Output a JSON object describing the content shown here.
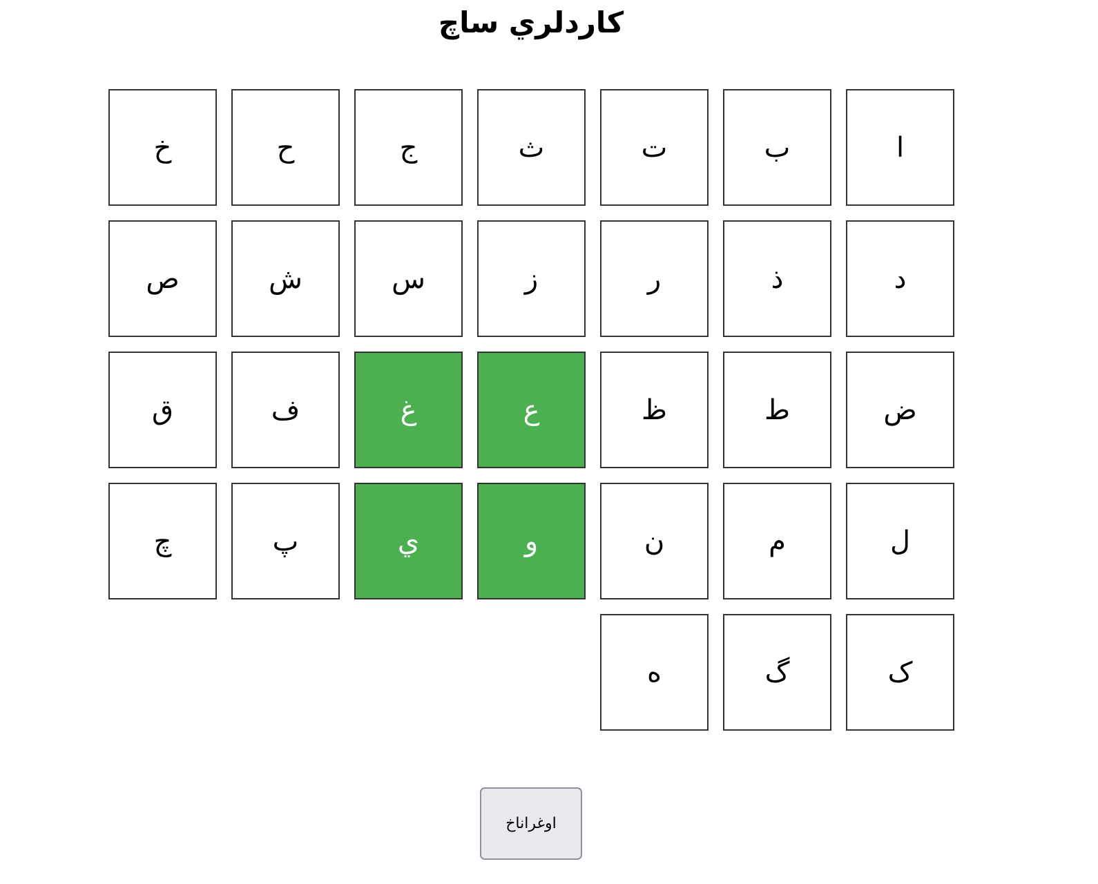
{
  "title": "كاردلري ساچ",
  "letters": [
    {
      "char": "ا",
      "selected": false
    },
    {
      "char": "ب",
      "selected": false
    },
    {
      "char": "ت",
      "selected": false
    },
    {
      "char": "ث",
      "selected": false
    },
    {
      "char": "ج",
      "selected": false
    },
    {
      "char": "ح",
      "selected": false
    },
    {
      "char": "خ",
      "selected": false
    },
    {
      "char": "د",
      "selected": false
    },
    {
      "char": "ذ",
      "selected": false
    },
    {
      "char": "ر",
      "selected": false
    },
    {
      "char": "ز",
      "selected": false
    },
    {
      "char": "س",
      "selected": false
    },
    {
      "char": "ش",
      "selected": false
    },
    {
      "char": "ص",
      "selected": false
    },
    {
      "char": "ض",
      "selected": false
    },
    {
      "char": "ط",
      "selected": false
    },
    {
      "char": "ظ",
      "selected": false
    },
    {
      "char": "ع",
      "selected": true
    },
    {
      "char": "غ",
      "selected": true
    },
    {
      "char": "ف",
      "selected": false
    },
    {
      "char": "ق",
      "selected": false
    },
    {
      "char": "ل",
      "selected": false
    },
    {
      "char": "م",
      "selected": false
    },
    {
      "char": "ن",
      "selected": false
    },
    {
      "char": "و",
      "selected": true
    },
    {
      "char": "ي",
      "selected": true
    },
    {
      "char": "پ",
      "selected": false
    },
    {
      "char": "چ",
      "selected": false
    },
    {
      "char": "ک",
      "selected": false
    },
    {
      "char": "گ",
      "selected": false
    },
    {
      "char": "ه",
      "selected": false
    }
  ],
  "colors": {
    "selected": "#4CAF50",
    "selected_text": "#ffffff"
  },
  "read_button": "اوغراناخ"
}
